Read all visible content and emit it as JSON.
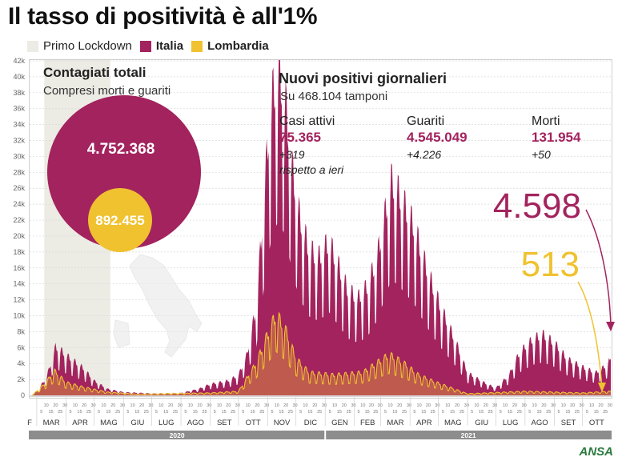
{
  "header": {
    "title": "Il tasso di positività è all'1%"
  },
  "legend": {
    "lockdown_label": "Primo Lockdown",
    "italia_label": "Italia",
    "lombardia_label": "Lombardia"
  },
  "totals": {
    "title": "Contagiati totali",
    "subtitle": "Compresi morti e guariti",
    "italia_value": "4.752.368",
    "lombardia_value": "892.455"
  },
  "daily": {
    "title": "Nuovi positivi giornalieri",
    "subtitle": "Su 468.104 tamponi",
    "cols": [
      {
        "label": "Casi attivi",
        "value": "75.365",
        "delta": "+319",
        "note": "rispetto a ieri"
      },
      {
        "label": "Guariti",
        "value": "4.545.049",
        "delta": "+4.226",
        "note": ""
      },
      {
        "label": "Morti",
        "value": "131.954",
        "delta": "+50",
        "note": ""
      }
    ]
  },
  "callouts": {
    "italia_latest": "4.598",
    "lombardia_latest": "513"
  },
  "colors": {
    "italia": "#a3235e",
    "lombardia": "#f0c230",
    "lockdown": "#ecebe4",
    "timeline_bar": "#8d8d8d",
    "grid": "#d8d8d8"
  },
  "brand": "ANSA",
  "chart_data": {
    "type": "area",
    "title": "Nuovi positivi giornalieri",
    "xlabel": "",
    "ylabel": "",
    "ylim": [
      0,
      42000
    ],
    "y_ticks": [
      "0",
      "2k",
      "4k",
      "6k",
      "8k",
      "10k",
      "12k",
      "14k",
      "16k",
      "18k",
      "20k",
      "22k",
      "24k",
      "26k",
      "28k",
      "30k",
      "32k",
      "34k",
      "36k",
      "38k",
      "40k",
      "42k"
    ],
    "grid": true,
    "lockdown_period": [
      "2020-03-09",
      "2020-05-18"
    ],
    "months": [
      "MAR",
      "APR",
      "MAG",
      "GIU",
      "LUG",
      "AGO",
      "SET",
      "OTT",
      "NOV",
      "DIC",
      "GEN",
      "FEB",
      "MAR",
      "APR",
      "MAG",
      "GIU",
      "LUG",
      "AGO",
      "SET",
      "OTT"
    ],
    "years": [
      "2020",
      "2021"
    ],
    "series": [
      {
        "name": "Italia",
        "x": [
          "2020-02-25",
          "2020-03-01",
          "2020-03-10",
          "2020-03-15",
          "2020-03-21",
          "2020-03-27",
          "2020-04-03",
          "2020-04-10",
          "2020-04-20",
          "2020-05-01",
          "2020-05-15",
          "2020-06-01",
          "2020-07-01",
          "2020-08-01",
          "2020-08-20",
          "2020-09-01",
          "2020-09-20",
          "2020-10-01",
          "2020-10-10",
          "2020-10-20",
          "2020-10-26",
          "2020-11-01",
          "2020-11-06",
          "2020-11-13",
          "2020-11-20",
          "2020-11-27",
          "2020-12-05",
          "2020-12-15",
          "2020-12-25",
          "2021-01-05",
          "2021-01-15",
          "2021-01-25",
          "2021-02-05",
          "2021-02-15",
          "2021-02-25",
          "2021-03-05",
          "2021-03-12",
          "2021-03-20",
          "2021-03-28",
          "2021-04-05",
          "2021-04-15",
          "2021-04-25",
          "2021-05-05",
          "2021-05-20",
          "2021-06-01",
          "2021-06-20",
          "2021-07-01",
          "2021-07-15",
          "2021-07-25",
          "2021-08-01",
          "2021-08-10",
          "2021-08-20",
          "2021-09-01",
          "2021-09-15",
          "2021-10-01",
          "2021-10-15",
          "2021-10-25",
          "2021-10-31"
        ],
        "values": [
          0,
          500,
          2000,
          3500,
          6000,
          5500,
          4800,
          4200,
          3300,
          1800,
          800,
          400,
          250,
          300,
          800,
          1400,
          1800,
          2500,
          5000,
          11000,
          21000,
          31000,
          37000,
          40000,
          36000,
          28000,
          22000,
          18000,
          17000,
          19000,
          16000,
          13000,
          12000,
          13500,
          17000,
          22000,
          26500,
          25000,
          23000,
          21000,
          17000,
          13500,
          10500,
          6500,
          2800,
          1500,
          900,
          2500,
          5000,
          6000,
          7000,
          7500,
          6500,
          4500,
          3500,
          2800,
          3600,
          4598
        ]
      },
      {
        "name": "Lombardia",
        "x": [
          "2020-02-25",
          "2020-03-10",
          "2020-03-20",
          "2020-04-01",
          "2020-04-20",
          "2020-05-15",
          "2020-06-15",
          "2020-09-01",
          "2020-10-01",
          "2020-10-20",
          "2020-11-01",
          "2020-11-10",
          "2020-11-20",
          "2020-12-01",
          "2020-12-15",
          "2021-01-10",
          "2021-02-10",
          "2021-03-10",
          "2021-03-25",
          "2021-04-10",
          "2021-05-01",
          "2021-06-01",
          "2021-08-01",
          "2021-09-01",
          "2021-10-01",
          "2021-10-31"
        ],
        "values": [
          0,
          1500,
          3000,
          1600,
          1000,
          400,
          150,
          300,
          500,
          4000,
          7500,
          10000,
          8000,
          4500,
          2800,
          2500,
          2800,
          5000,
          4000,
          2500,
          1500,
          200,
          500,
          400,
          300,
          513
        ]
      }
    ]
  }
}
